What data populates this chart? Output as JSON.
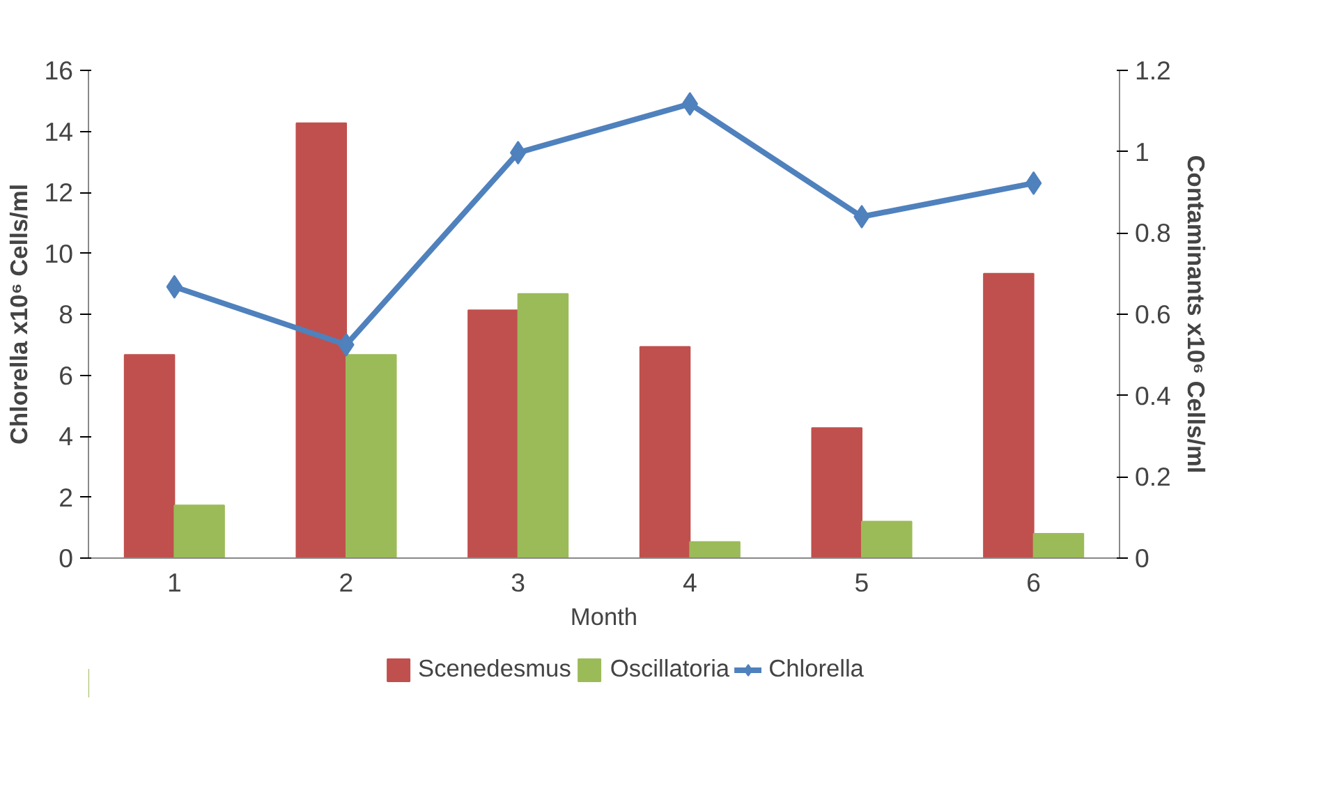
{
  "chart_data": {
    "type": "bar",
    "xlabel": "Month",
    "ylabel": "Chlorella x10⁶ Cells/ml",
    "y2label": "Contaminants x10⁶ Cells/ml",
    "categories": [
      "1",
      "2",
      "3",
      "4",
      "5",
      "6"
    ],
    "series": [
      {
        "name": "Scenedesmus",
        "color": "#c0504d",
        "axis": "y2",
        "values": [
          0.5,
          1.07,
          0.61,
          0.52,
          0.32,
          0.7
        ]
      },
      {
        "name": "Oscillatoria",
        "color": "#9bbb59",
        "axis": "y2",
        "values": [
          0.13,
          0.5,
          0.65,
          0.04,
          0.09,
          0.06
        ]
      },
      {
        "name": "Chlorella",
        "color": "#4f81bd",
        "type": "line",
        "marker": "diamond",
        "values": [
          8.9,
          7.0,
          13.3,
          14.9,
          11.2,
          12.3
        ]
      }
    ],
    "ylim": [
      0,
      16
    ],
    "yticks": [
      0,
      2,
      4,
      6,
      8,
      10,
      12,
      14,
      16
    ],
    "y2lim": [
      0,
      1.2
    ],
    "y2ticks": [
      0,
      0.2,
      0.4,
      0.6,
      0.8,
      1,
      1.2
    ],
    "grid": false,
    "legend": "bottom"
  }
}
